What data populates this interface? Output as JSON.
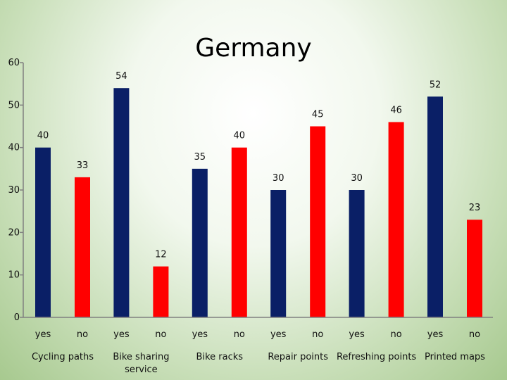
{
  "chart_data": {
    "type": "bar",
    "title": "Germany",
    "xlabel": "",
    "ylabel": "",
    "ylim": [
      0,
      60
    ],
    "yticks": [
      0,
      10,
      20,
      30,
      40,
      50,
      60
    ],
    "grid": false,
    "legend": "none",
    "categories": [
      "Cycling paths",
      "Bike sharing service",
      "Bike racks",
      "Repair points",
      "Refreshing points",
      "Printed maps"
    ],
    "category_lines": [
      [
        "Cycling paths"
      ],
      [
        "Bike sharing",
        "service"
      ],
      [
        "Bike racks"
      ],
      [
        "Repair points"
      ],
      [
        "Refreshing points"
      ],
      [
        "Printed maps"
      ]
    ],
    "sub_labels": [
      "yes",
      "no"
    ],
    "colors": {
      "yes": "#0a1f66",
      "no": "#ff0000"
    },
    "values": [
      {
        "yes": 40,
        "no": 33
      },
      {
        "yes": 54,
        "no": 12
      },
      {
        "yes": 35,
        "no": 40
      },
      {
        "yes": 30,
        "no": 45
      },
      {
        "yes": 30,
        "no": 46
      },
      {
        "yes": 52,
        "no": 23
      }
    ]
  }
}
